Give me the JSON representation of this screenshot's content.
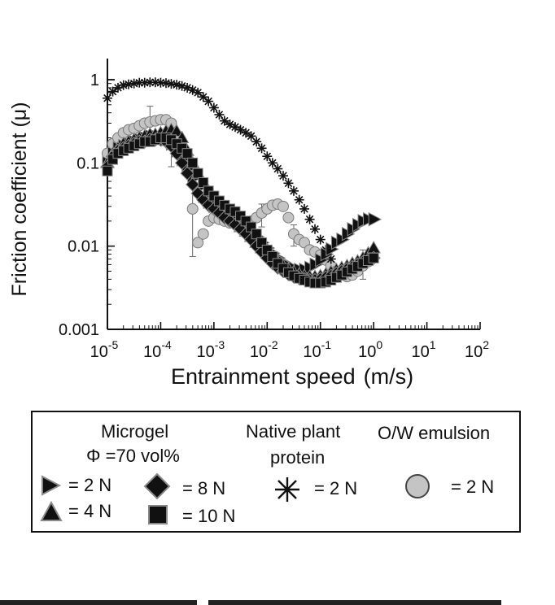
{
  "chart_data": {
    "type": "scatter",
    "x_scale": "log",
    "y_scale": "log",
    "xlim": [
      1e-05,
      100
    ],
    "ylim": [
      0.001,
      1.5
    ],
    "xlabel": "Entrainment speed",
    "xlabel_unit": "(m/s)",
    "ylabel": "Friction coefficient (μ)",
    "x_ticks": [
      {
        "base": "10",
        "exp": "-5"
      },
      {
        "base": "10",
        "exp": "-4"
      },
      {
        "base": "10",
        "exp": "-3"
      },
      {
        "base": "10",
        "exp": "-2"
      },
      {
        "base": "10",
        "exp": "-1"
      },
      {
        "base": "10",
        "exp": "0"
      },
      {
        "base": "10",
        "exp": "1"
      },
      {
        "base": "10",
        "exp": "2"
      }
    ],
    "y_ticks": [
      "0.001",
      "0.01",
      "0.1",
      "1"
    ],
    "series": [
      {
        "name": "Native plant protein = 2 N",
        "marker": "asterisk",
        "x": [
          1e-05,
          1.26e-05,
          1.58e-05,
          2e-05,
          2.5e-05,
          3.16e-05,
          3.98e-05,
          5e-05,
          6.3e-05,
          7.94e-05,
          0.0001,
          0.000126,
          0.000158,
          0.0002,
          0.000251,
          0.000316,
          0.000398,
          0.0005,
          0.00063,
          0.00079,
          0.001,
          0.00126,
          0.00158,
          0.002,
          0.00251,
          0.00316,
          0.00398,
          0.005,
          0.0063,
          0.0079,
          0.01,
          0.0126,
          0.0158,
          0.02,
          0.0251,
          0.0316,
          0.04,
          0.05,
          0.063,
          0.079,
          0.1,
          0.126,
          0.158
        ],
        "y": [
          0.6,
          0.72,
          0.8,
          0.86,
          0.88,
          0.9,
          0.92,
          0.92,
          0.93,
          0.93,
          0.92,
          0.91,
          0.89,
          0.87,
          0.84,
          0.8,
          0.75,
          0.7,
          0.62,
          0.55,
          0.46,
          0.38,
          0.32,
          0.29,
          0.27,
          0.25,
          0.23,
          0.21,
          0.18,
          0.15,
          0.12,
          0.1,
          0.085,
          0.07,
          0.057,
          0.046,
          0.036,
          0.028,
          0.021,
          0.016,
          0.012,
          0.009,
          0.007
        ]
      },
      {
        "name": "O/W emulsion = 2 N",
        "marker": "circle",
        "x": [
          1e-05,
          1.26e-05,
          1.58e-05,
          2e-05,
          2.5e-05,
          3.16e-05,
          3.98e-05,
          5e-05,
          6.3e-05,
          7.94e-05,
          0.0001,
          0.000126,
          0.000158,
          0.0002,
          0.000251,
          0.000316,
          0.000398,
          0.0005,
          0.00063,
          0.00079,
          0.001,
          0.00126,
          0.00158,
          0.002,
          0.00251,
          0.00316,
          0.00398,
          0.005,
          0.0063,
          0.0079,
          0.01,
          0.0126,
          0.0158,
          0.02,
          0.0251,
          0.0316,
          0.04,
          0.05,
          0.063,
          0.079,
          0.1,
          0.126,
          0.158,
          0.2,
          0.251,
          0.316,
          0.398,
          0.5,
          0.63,
          0.79,
          1.0
        ],
        "y": [
          0.13,
          0.17,
          0.2,
          0.23,
          0.25,
          0.26,
          0.28,
          0.3,
          0.31,
          0.32,
          0.33,
          0.33,
          0.3,
          0.21,
          0.12,
          0.08,
          0.028,
          0.011,
          0.014,
          0.02,
          0.022,
          0.021,
          0.02,
          0.019,
          0.019,
          0.018,
          0.018,
          0.02,
          0.022,
          0.025,
          0.028,
          0.031,
          0.032,
          0.03,
          0.022,
          0.014,
          0.012,
          0.011,
          0.009,
          0.0085,
          0.0078,
          0.0068,
          0.0058,
          0.005,
          0.0045,
          0.0043,
          0.0045,
          0.005,
          0.0058,
          0.0065,
          0.0072
        ]
      },
      {
        "name": "Microgel = 2 N",
        "marker": "triangle-right",
        "x": [
          1e-05,
          1.26e-05,
          1.58e-05,
          2e-05,
          2.5e-05,
          3.16e-05,
          3.98e-05,
          5e-05,
          6.3e-05,
          7.94e-05,
          0.0001,
          0.000126,
          0.000158,
          0.0002,
          0.000251,
          0.000316,
          0.000398,
          0.0005,
          0.00063,
          0.00079,
          0.001,
          0.00126,
          0.00158,
          0.002,
          0.00251,
          0.00316,
          0.00398,
          0.005,
          0.0063,
          0.0079,
          0.01,
          0.0126,
          0.0158,
          0.02,
          0.0251,
          0.0316,
          0.04,
          0.05,
          0.063,
          0.079,
          0.1,
          0.126,
          0.158,
          0.2,
          0.251,
          0.316,
          0.398,
          0.5,
          0.63,
          0.79,
          1.0
        ],
        "y": [
          0.1,
          0.13,
          0.15,
          0.16,
          0.17,
          0.18,
          0.19,
          0.2,
          0.21,
          0.21,
          0.2,
          0.19,
          0.17,
          0.14,
          0.11,
          0.085,
          0.065,
          0.05,
          0.04,
          0.034,
          0.03,
          0.027,
          0.025,
          0.023,
          0.021,
          0.019,
          0.017,
          0.015,
          0.013,
          0.011,
          0.0095,
          0.0082,
          0.0072,
          0.0064,
          0.0058,
          0.0054,
          0.0052,
          0.0052,
          0.0055,
          0.006,
          0.0068,
          0.008,
          0.0092,
          0.011,
          0.012,
          0.014,
          0.016,
          0.018,
          0.02,
          0.021,
          0.021
        ]
      },
      {
        "name": "Microgel = 4 N",
        "marker": "triangle-up",
        "x": [
          1e-05,
          1.26e-05,
          1.58e-05,
          2e-05,
          2.5e-05,
          3.16e-05,
          3.98e-05,
          5e-05,
          6.3e-05,
          7.94e-05,
          0.0001,
          0.000126,
          0.000158,
          0.0002,
          0.000251,
          0.000316,
          0.000398,
          0.0005,
          0.00063,
          0.00079,
          0.001,
          0.00126,
          0.00158,
          0.002,
          0.00251,
          0.00316,
          0.00398,
          0.005,
          0.0063,
          0.0079,
          0.01,
          0.0126,
          0.0158,
          0.02,
          0.0251,
          0.0316,
          0.04,
          0.05,
          0.063,
          0.079,
          0.1,
          0.126,
          0.158,
          0.2,
          0.251,
          0.316,
          0.398,
          0.5,
          0.63,
          0.79,
          1.0
        ],
        "y": [
          0.1,
          0.13,
          0.15,
          0.17,
          0.18,
          0.19,
          0.2,
          0.21,
          0.22,
          0.22,
          0.23,
          0.24,
          0.25,
          0.24,
          0.2,
          0.14,
          0.1,
          0.075,
          0.058,
          0.046,
          0.038,
          0.032,
          0.027,
          0.023,
          0.02,
          0.017,
          0.015,
          0.013,
          0.011,
          0.0095,
          0.0082,
          0.0072,
          0.0064,
          0.0058,
          0.0053,
          0.0049,
          0.0046,
          0.0044,
          0.0043,
          0.0043,
          0.0044,
          0.0046,
          0.0049,
          0.0052,
          0.0055,
          0.0058,
          0.0062,
          0.0066,
          0.0072,
          0.0082,
          0.0095
        ]
      },
      {
        "name": "Microgel = 8 N",
        "marker": "diamond",
        "x": [
          1e-05,
          1.26e-05,
          1.58e-05,
          2e-05,
          2.5e-05,
          3.16e-05,
          3.98e-05,
          5e-05,
          6.3e-05,
          7.94e-05,
          0.0001,
          0.000126,
          0.000158,
          0.0002,
          0.000251,
          0.000316,
          0.000398,
          0.0005,
          0.00063,
          0.00079,
          0.001,
          0.00126,
          0.00158,
          0.002,
          0.00251,
          0.00316,
          0.00398,
          0.005,
          0.0063,
          0.0079,
          0.01,
          0.0126,
          0.0158,
          0.02,
          0.0251,
          0.0316,
          0.04,
          0.05,
          0.063,
          0.079,
          0.1,
          0.126,
          0.158,
          0.2,
          0.251,
          0.316,
          0.398,
          0.5,
          0.63,
          0.79,
          1.0
        ],
        "y": [
          0.09,
          0.12,
          0.14,
          0.15,
          0.16,
          0.17,
          0.18,
          0.18,
          0.19,
          0.19,
          0.19,
          0.18,
          0.16,
          0.13,
          0.1,
          0.075,
          0.055,
          0.043,
          0.036,
          0.031,
          0.028,
          0.025,
          0.022,
          0.02,
          0.018,
          0.016,
          0.014,
          0.012,
          0.01,
          0.0085,
          0.0072,
          0.0062,
          0.0055,
          0.005,
          0.0046,
          0.0043,
          0.0041,
          0.004,
          0.0039,
          0.0039,
          0.004,
          0.0042,
          0.0044,
          0.0047,
          0.005,
          0.0053,
          0.0056,
          0.006,
          0.0064,
          0.0068,
          0.0072
        ]
      },
      {
        "name": "Microgel = 10 N",
        "marker": "square",
        "x": [
          1e-05,
          1.26e-05,
          1.58e-05,
          2e-05,
          2.5e-05,
          3.16e-05,
          3.98e-05,
          5e-05,
          6.3e-05,
          7.94e-05,
          0.0001,
          0.000126,
          0.000158,
          0.0002,
          0.000251,
          0.000316,
          0.000398,
          0.0005,
          0.00063,
          0.00079,
          0.001,
          0.00126,
          0.00158,
          0.002,
          0.00251,
          0.00316,
          0.00398,
          0.005,
          0.0063,
          0.0079,
          0.01,
          0.0126,
          0.0158,
          0.02,
          0.0251,
          0.0316,
          0.04,
          0.05,
          0.063,
          0.079,
          0.1,
          0.126,
          0.158,
          0.2,
          0.251,
          0.316,
          0.398,
          0.5,
          0.63,
          0.79,
          1.0
        ],
        "y": [
          0.08,
          0.11,
          0.13,
          0.14,
          0.15,
          0.16,
          0.17,
          0.18,
          0.18,
          0.19,
          0.2,
          0.2,
          0.19,
          0.17,
          0.15,
          0.13,
          0.1,
          0.075,
          0.058,
          0.046,
          0.04,
          0.035,
          0.031,
          0.028,
          0.026,
          0.023,
          0.02,
          0.017,
          0.014,
          0.011,
          0.009,
          0.0075,
          0.0062,
          0.0054,
          0.0048,
          0.0044,
          0.0041,
          0.0039,
          0.0037,
          0.0036,
          0.0036,
          0.0037,
          0.0039,
          0.0042,
          0.0045,
          0.0049,
          0.0053,
          0.0057,
          0.0062,
          0.0067,
          0.0072
        ]
      }
    ],
    "error_bars": [
      {
        "x": 6.3e-05,
        "low": 0.17,
        "high": 0.48
      },
      {
        "x": 0.000158,
        "low": 0.09,
        "high": 0.3
      },
      {
        "x": 0.000398,
        "low": 0.0075,
        "high": 0.05
      },
      {
        "x": 0.0316,
        "low": 0.01,
        "high": 0.018
      },
      {
        "x": 0.0079,
        "low": 0.017,
        "high": 0.032
      },
      {
        "x": 0.63,
        "low": 0.004,
        "high": 0.009
      }
    ]
  },
  "legend": {
    "microgel_title": "Microgel",
    "microgel_subtitle": "Φ =70 vol%",
    "microgel_2n": "= 2 N",
    "microgel_4n": "= 4 N",
    "microgel_8n": "= 8 N",
    "microgel_10n": "= 10 N",
    "plant_title_line1": "Native plant",
    "plant_title_line2": "protein",
    "plant_2n": "= 2 N",
    "emulsion_title": "O/W emulsion",
    "emulsion_2n": "= 2 N"
  },
  "colors": {
    "marker_dark": "#111111",
    "marker_edge": "#8a8a8a",
    "circle_fill": "#c4c4c4",
    "circle_edge": "#7a7a7a",
    "axis": "#111111"
  }
}
